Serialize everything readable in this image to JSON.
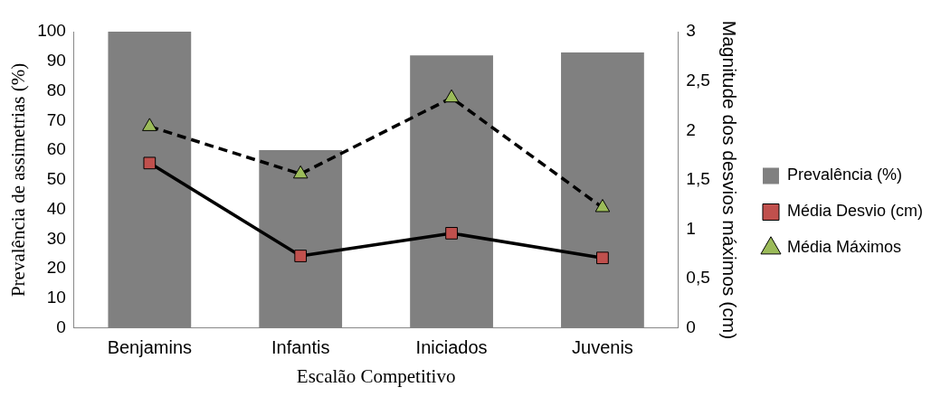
{
  "chart_data": {
    "type": "bar",
    "xlabel": "Escalão Competitivo",
    "ylabel": "Prevalência de assimetrias (%)",
    "y2label": "Magnitude dos desvios máximos (cm)",
    "categories": [
      "Benjamins",
      "Infantis",
      "Iniciados",
      "Juvenis"
    ],
    "series": [
      {
        "name": "Prevalência (%)",
        "color": "#808080",
        "values": [
          100,
          60,
          92,
          93
        ]
      },
      {
        "name": "Média Desvio (cm)",
        "type": "line",
        "axis": "y2",
        "color": "#c0504d",
        "marker": "square",
        "line_style": "solid",
        "values": [
          1.67,
          0.73,
          0.96,
          0.71
        ]
      },
      {
        "name": "Média Máximos",
        "type": "line",
        "axis": "y2",
        "color": "#9bbb59",
        "marker": "triangle",
        "line_style": "dashed",
        "values": [
          2.04,
          1.56,
          2.33,
          1.22
        ]
      }
    ],
    "ylim": [
      0,
      100
    ],
    "yticks": [
      0,
      10,
      20,
      30,
      40,
      50,
      60,
      70,
      80,
      90,
      100
    ],
    "y2lim": [
      0,
      3
    ],
    "y2ticks": [
      {
        "value": 0,
        "label": "0"
      },
      {
        "value": 0.5,
        "label": "0,5"
      },
      {
        "value": 1,
        "label": "1"
      },
      {
        "value": 1.5,
        "label": "1,5"
      },
      {
        "value": 2,
        "label": "2"
      },
      {
        "value": 2.5,
        "label": "2,5"
      },
      {
        "value": 3,
        "label": "3"
      }
    ],
    "grid": false,
    "legend": "right"
  }
}
